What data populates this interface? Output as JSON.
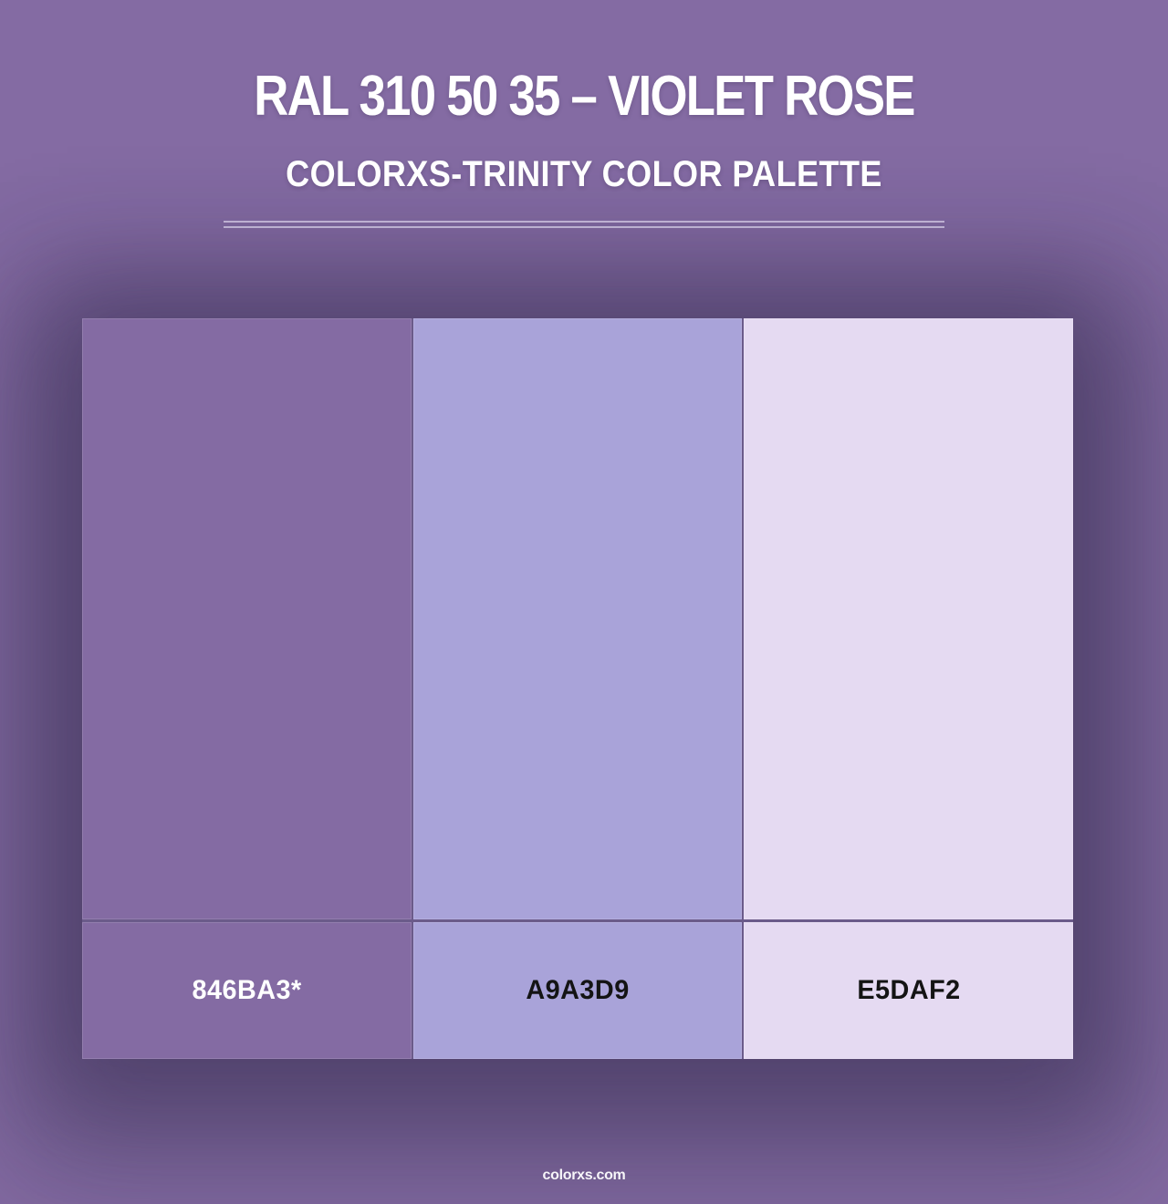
{
  "header": {
    "title": "RAL 310 50 35 – VIOLET ROSE",
    "subtitle": "COLORXS-TRINITY COLOR PALETTE"
  },
  "palette": {
    "name": "Colorxs-Trinity color palette",
    "swatches": [
      {
        "label": "846BA3*",
        "color": "#846BA3",
        "label_color": "#FFFFFF"
      },
      {
        "label": "A9A3D9",
        "color": "#A9A3D9",
        "label_color": "#141414"
      },
      {
        "label": "E5DAF2",
        "color": "#E5DAF2",
        "label_color": "#141414"
      }
    ]
  },
  "footer": {
    "watermark": "colorxs.com"
  },
  "colors": {
    "background": "#846BA3",
    "grid_line": "#6B5B8A",
    "header_text": "#FFFFFF",
    "divider_line": "#E7E1F4"
  }
}
